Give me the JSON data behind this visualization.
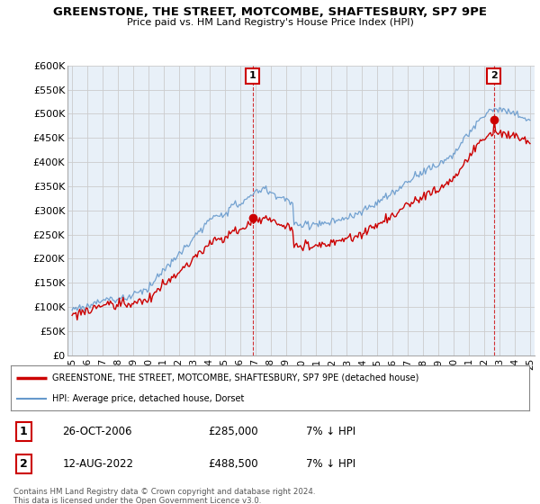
{
  "title": "GREENSTONE, THE STREET, MOTCOMBE, SHAFTESBURY, SP7 9PE",
  "subtitle": "Price paid vs. HM Land Registry's House Price Index (HPI)",
  "ylabel_ticks": [
    "£0",
    "£50K",
    "£100K",
    "£150K",
    "£200K",
    "£250K",
    "£300K",
    "£350K",
    "£400K",
    "£450K",
    "£500K",
    "£550K",
    "£600K"
  ],
  "ytick_values": [
    0,
    50000,
    100000,
    150000,
    200000,
    250000,
    300000,
    350000,
    400000,
    450000,
    500000,
    550000,
    600000
  ],
  "ylim": [
    0,
    600000
  ],
  "transaction1_year": 2006.82,
  "transaction1_price": 285000,
  "transaction2_year": 2022.62,
  "transaction2_price": 488500,
  "legend_label1": "GREENSTONE, THE STREET, MOTCOMBE, SHAFTESBURY, SP7 9PE (detached house)",
  "legend_label2": "HPI: Average price, detached house, Dorset",
  "footer": "Contains HM Land Registry data © Crown copyright and database right 2024.\nThis data is licensed under the Open Government Licence v3.0.",
  "line_color_red": "#cc0000",
  "line_color_blue": "#6699cc",
  "fill_color_blue": "#ddeeff",
  "bg_color": "#ffffff",
  "grid_color": "#cccccc",
  "annotation_box_color": "#cc0000",
  "chart_bg": "#e8f0f8"
}
